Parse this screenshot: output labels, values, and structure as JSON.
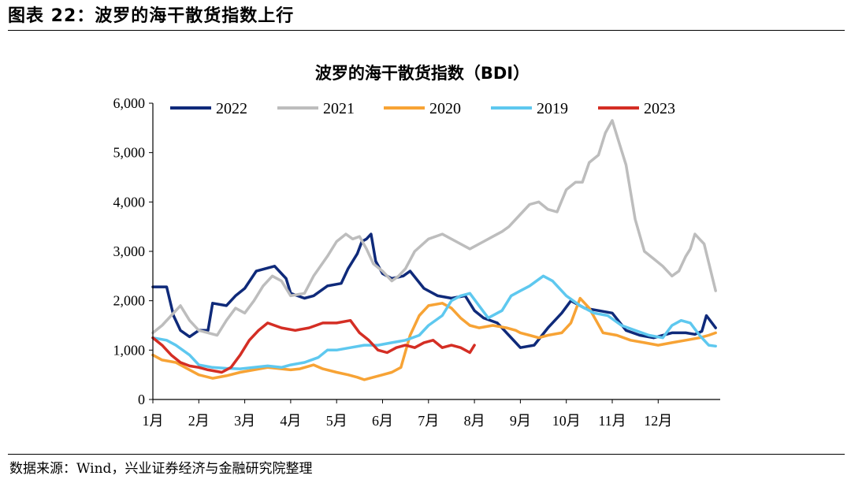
{
  "header": {
    "figure_title": "图表 22：波罗的海干散货指数上行",
    "source": "数据来源：Wind，兴业证券经济与金融研究院整理"
  },
  "chart_data": {
    "type": "line",
    "title": "波罗的海干散货指数（BDI）",
    "xlabel": "",
    "ylabel": "",
    "ylim": [
      0,
      6000
    ],
    "yticks": [
      0,
      1000,
      2000,
      3000,
      4000,
      5000,
      6000
    ],
    "ytick_labels": [
      "0",
      "1,000",
      "2,000",
      "3,000",
      "4,000",
      "5,000",
      "6,000"
    ],
    "xlim": [
      1,
      13.35
    ],
    "xticks": [
      1,
      2,
      3,
      4,
      5,
      6,
      7,
      8,
      9,
      10,
      11,
      12
    ],
    "xtick_labels": [
      "1月",
      "2月",
      "3月",
      "4月",
      "5月",
      "6月",
      "7月",
      "8月",
      "9月",
      "10月",
      "11月",
      "12月"
    ],
    "grid": false,
    "legend_position": "top",
    "series": [
      {
        "name": "2022",
        "color": "#0f2a7a",
        "x": [
          1.0,
          1.3,
          1.45,
          1.6,
          1.8,
          2.0,
          2.2,
          2.3,
          2.6,
          2.8,
          3.0,
          3.25,
          3.45,
          3.65,
          3.9,
          4.0,
          4.3,
          4.5,
          4.8,
          5.1,
          5.25,
          5.45,
          5.55,
          5.65,
          5.75,
          5.85,
          6.0,
          6.2,
          6.45,
          6.6,
          6.9,
          7.2,
          7.5,
          7.8,
          8.0,
          8.2,
          8.5,
          8.75,
          9.0,
          9.3,
          9.6,
          9.9,
          10.1,
          10.4,
          10.7,
          11.0,
          11.3,
          11.6,
          11.9,
          12.3,
          12.6,
          12.8,
          12.95,
          13.05,
          13.25
        ],
        "y": [
          2280,
          2280,
          1700,
          1400,
          1270,
          1400,
          1400,
          1950,
          1900,
          2100,
          2250,
          2600,
          2650,
          2700,
          2450,
          2150,
          2050,
          2100,
          2300,
          2350,
          2650,
          2950,
          3200,
          3250,
          3350,
          2800,
          2550,
          2450,
          2500,
          2600,
          2250,
          2100,
          2050,
          2100,
          1800,
          1650,
          1550,
          1300,
          1050,
          1100,
          1450,
          1750,
          2000,
          1850,
          1800,
          1750,
          1400,
          1300,
          1250,
          1350,
          1350,
          1320,
          1380,
          1700,
          1450
        ]
      },
      {
        "name": "2021",
        "color": "#bdbdbd",
        "x": [
          1.0,
          1.2,
          1.4,
          1.6,
          1.8,
          2.0,
          2.2,
          2.4,
          2.6,
          2.8,
          3.0,
          3.2,
          3.4,
          3.6,
          3.8,
          4.0,
          4.3,
          4.5,
          4.8,
          5.0,
          5.2,
          5.35,
          5.5,
          5.65,
          5.8,
          6.0,
          6.2,
          6.35,
          6.5,
          6.7,
          7.0,
          7.3,
          7.6,
          7.9,
          8.2,
          8.4,
          8.6,
          8.75,
          9.0,
          9.2,
          9.4,
          9.6,
          9.8,
          10.0,
          10.2,
          10.35,
          10.5,
          10.7,
          10.85,
          11.0,
          11.15,
          11.3,
          11.5,
          11.7,
          11.9,
          12.1,
          12.3,
          12.45,
          12.6,
          12.7,
          12.8,
          13.0,
          13.25
        ],
        "y": [
          1350,
          1500,
          1700,
          1900,
          1600,
          1400,
          1350,
          1300,
          1600,
          1850,
          1750,
          2000,
          2300,
          2500,
          2400,
          2100,
          2150,
          2500,
          2900,
          3200,
          3350,
          3250,
          3300,
          3050,
          2750,
          2600,
          2400,
          2500,
          2650,
          3000,
          3250,
          3350,
          3200,
          3050,
          3200,
          3300,
          3400,
          3500,
          3750,
          3950,
          4000,
          3850,
          3800,
          4250,
          4400,
          4400,
          4800,
          4950,
          5400,
          5650,
          5200,
          4750,
          3650,
          3000,
          2850,
          2700,
          2500,
          2600,
          2900,
          3050,
          3350,
          3150,
          2200
        ]
      },
      {
        "name": "2020",
        "color": "#f7a335",
        "x": [
          1.0,
          1.2,
          1.5,
          1.8,
          2.0,
          2.3,
          2.6,
          2.9,
          3.2,
          3.5,
          3.8,
          4.0,
          4.2,
          4.5,
          4.7,
          5.0,
          5.25,
          5.45,
          5.6,
          5.8,
          6.0,
          6.2,
          6.4,
          6.6,
          6.8,
          7.0,
          7.3,
          7.5,
          7.7,
          7.9,
          8.1,
          8.4,
          8.7,
          8.9,
          9.0,
          9.2,
          9.4,
          9.6,
          9.9,
          10.1,
          10.3,
          10.5,
          10.8,
          11.1,
          11.4,
          11.7,
          12.0,
          12.3,
          12.6,
          12.9,
          13.1,
          13.25
        ],
        "y": [
          900,
          800,
          750,
          600,
          500,
          430,
          480,
          550,
          600,
          650,
          620,
          600,
          620,
          700,
          620,
          550,
          500,
          450,
          400,
          450,
          500,
          550,
          650,
          1300,
          1700,
          1900,
          1950,
          1850,
          1650,
          1500,
          1450,
          1500,
          1450,
          1400,
          1350,
          1300,
          1250,
          1300,
          1350,
          1550,
          2050,
          1850,
          1350,
          1300,
          1200,
          1150,
          1100,
          1150,
          1200,
          1250,
          1300,
          1350
        ]
      },
      {
        "name": "2019",
        "color": "#5ec8ef",
        "x": [
          1.0,
          1.3,
          1.5,
          1.8,
          2.0,
          2.3,
          2.6,
          2.9,
          3.2,
          3.5,
          3.8,
          4.0,
          4.3,
          4.6,
          4.8,
          5.0,
          5.3,
          5.6,
          5.9,
          6.2,
          6.5,
          6.8,
          7.0,
          7.3,
          7.5,
          7.7,
          7.9,
          8.1,
          8.3,
          8.6,
          8.8,
          9.0,
          9.2,
          9.5,
          9.7,
          10.0,
          10.3,
          10.6,
          10.9,
          11.2,
          11.5,
          11.8,
          12.1,
          12.3,
          12.5,
          12.7,
          12.9,
          13.1,
          13.25
        ],
        "y": [
          1250,
          1200,
          1100,
          900,
          700,
          650,
          630,
          620,
          650,
          680,
          650,
          700,
          750,
          850,
          1000,
          1000,
          1050,
          1100,
          1100,
          1150,
          1200,
          1300,
          1500,
          1700,
          2000,
          2100,
          2150,
          1900,
          1650,
          1800,
          2100,
          2200,
          2300,
          2500,
          2400,
          2100,
          1900,
          1750,
          1700,
          1500,
          1400,
          1300,
          1250,
          1500,
          1600,
          1550,
          1300,
          1100,
          1080
        ]
      },
      {
        "name": "2023",
        "color": "#d42e24",
        "x": [
          1.0,
          1.2,
          1.4,
          1.6,
          1.8,
          2.0,
          2.2,
          2.5,
          2.7,
          2.9,
          3.1,
          3.3,
          3.5,
          3.8,
          4.1,
          4.4,
          4.7,
          5.0,
          5.3,
          5.5,
          5.7,
          5.9,
          6.1,
          6.3,
          6.5,
          6.7,
          6.9,
          7.1,
          7.3,
          7.5,
          7.7,
          7.9,
          8.0
        ],
        "y": [
          1250,
          1100,
          900,
          750,
          680,
          650,
          600,
          550,
          650,
          900,
          1200,
          1400,
          1550,
          1450,
          1400,
          1450,
          1550,
          1550,
          1600,
          1350,
          1200,
          1000,
          950,
          1050,
          1100,
          1050,
          1150,
          1200,
          1050,
          1100,
          1050,
          950,
          1100
        ]
      }
    ]
  }
}
